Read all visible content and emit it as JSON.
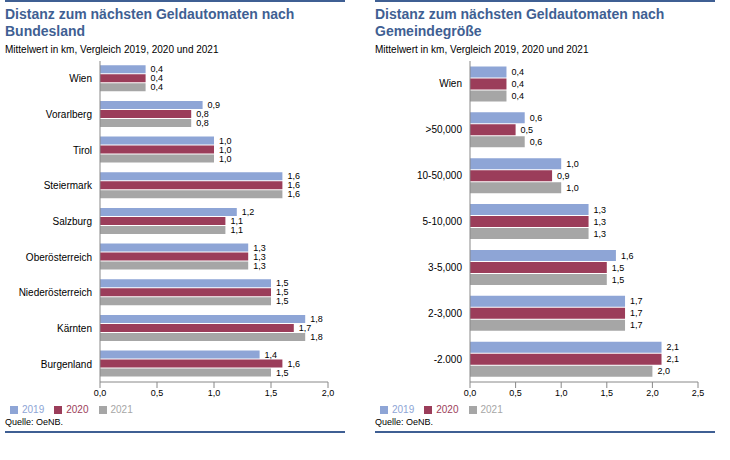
{
  "chart_data": [
    {
      "type": "bar",
      "orientation": "horizontal",
      "title": "Distanz zum nächsten Geldautomaten nach Bundesland",
      "subtitle": "Mittelwert in km, Vergleich 2019, 2020 und 2021",
      "source": "Quelle: OeNB.",
      "categories": [
        "Wien",
        "Vorarlberg",
        "Tirol",
        "Steiermark",
        "Salzburg",
        "Oberösterreich",
        "Niederösterreich",
        "Kärnten",
        "Burgenland"
      ],
      "series": [
        {
          "name": "2019",
          "color": "#8EA5D6",
          "values": [
            0.4,
            0.9,
            1.0,
            1.6,
            1.2,
            1.3,
            1.5,
            1.8,
            1.4
          ],
          "value_labels": [
            "0,4",
            "0,9",
            "1,0",
            "1,6",
            "1,2",
            "1,3",
            "1,5",
            "1,8",
            "1,4"
          ]
        },
        {
          "name": "2020",
          "color": "#9B3D5A",
          "values": [
            0.4,
            0.8,
            1.0,
            1.6,
            1.1,
            1.3,
            1.5,
            1.7,
            1.6
          ],
          "value_labels": [
            "0,4",
            "0,8",
            "1,0",
            "1,6",
            "1,1",
            "1,3",
            "1,5",
            "1,7",
            "1,6"
          ]
        },
        {
          "name": "2021",
          "color": "#A6A6A6",
          "values": [
            0.4,
            0.8,
            1.0,
            1.6,
            1.1,
            1.3,
            1.5,
            1.8,
            1.5
          ],
          "value_labels": [
            "0,4",
            "0,8",
            "1,0",
            "1,6",
            "1,1",
            "1,3",
            "1,5",
            "1,8",
            "1,5"
          ]
        }
      ],
      "xlim": [
        0,
        2
      ],
      "xticks": [
        {
          "value": 0,
          "label": "0,0"
        },
        {
          "value": 0.5,
          "label": "0,5"
        },
        {
          "value": 1,
          "label": "1,0"
        },
        {
          "value": 1.5,
          "label": "1,5"
        },
        {
          "value": 2,
          "label": "2,0"
        }
      ],
      "grid": false,
      "legend": "bottom",
      "data_labels": true
    },
    {
      "type": "bar",
      "orientation": "horizontal",
      "title": "Distanz zum nächsten Geldautomaten nach Gemeindegröße",
      "subtitle": "Mittelwert in km, Vergleich 2019, 2020 und 2021",
      "source": "Quelle: OeNB.",
      "categories": [
        "Wien",
        ">50,000",
        "10-50,000",
        "5-10,000",
        "3-5,000",
        "2-3,000",
        "-2.000"
      ],
      "series": [
        {
          "name": "2019",
          "color": "#8EA5D6",
          "values": [
            0.4,
            0.6,
            1.0,
            1.3,
            1.6,
            1.7,
            2.1
          ],
          "value_labels": [
            "0,4",
            "0,6",
            "1,0",
            "1,3",
            "1,6",
            "1,7",
            "2,1"
          ]
        },
        {
          "name": "2020",
          "color": "#9B3D5A",
          "values": [
            0.4,
            0.5,
            0.9,
            1.3,
            1.5,
            1.7,
            2.1
          ],
          "value_labels": [
            "0,4",
            "0,5",
            "0,9",
            "1,3",
            "1,5",
            "1,7",
            "2,1"
          ]
        },
        {
          "name": "2021",
          "color": "#A6A6A6",
          "values": [
            0.4,
            0.6,
            1.0,
            1.3,
            1.5,
            1.7,
            2.0
          ],
          "value_labels": [
            "0,4",
            "0,6",
            "1,0",
            "1,3",
            "1,5",
            "1,7",
            "2,0"
          ]
        }
      ],
      "xlim": [
        0,
        2.5
      ],
      "xticks": [
        {
          "value": 0,
          "label": "0,0"
        },
        {
          "value": 0.5,
          "label": "0,5"
        },
        {
          "value": 1,
          "label": "1,0"
        },
        {
          "value": 1.5,
          "label": "1,5"
        },
        {
          "value": 2,
          "label": "2,0"
        },
        {
          "value": 2.5,
          "label": "2,5"
        }
      ],
      "grid": false,
      "legend": "bottom",
      "data_labels": true
    }
  ]
}
